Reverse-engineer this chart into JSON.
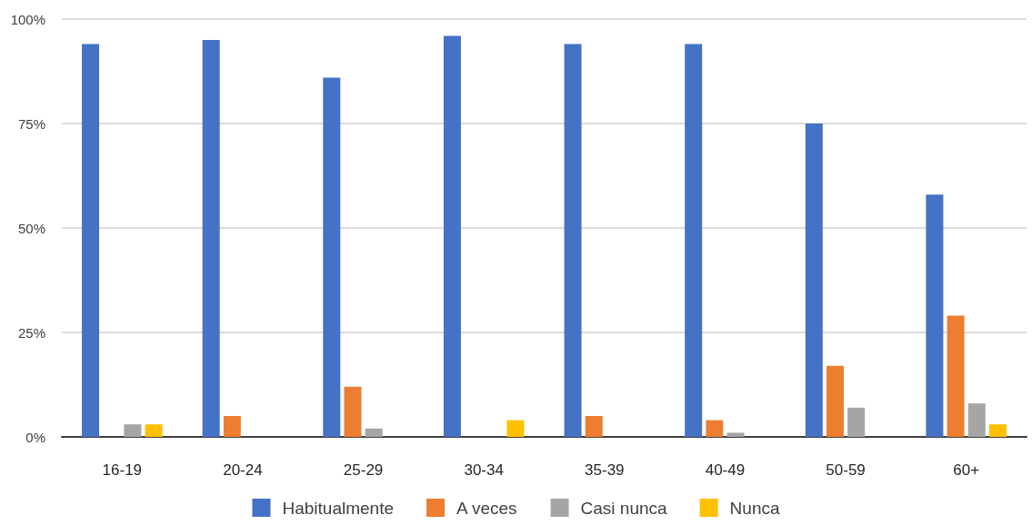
{
  "chart_data": {
    "type": "bar",
    "categories": [
      "16-19",
      "20-24",
      "25-29",
      "30-34",
      "35-39",
      "40-49",
      "50-59",
      "60+"
    ],
    "series": [
      {
        "name": "Habitualmente",
        "color": "#4472c4",
        "values": [
          94,
          95,
          86,
          96,
          94,
          94,
          75,
          58
        ]
      },
      {
        "name": "A veces",
        "color": "#ed7d31",
        "values": [
          0,
          5,
          12,
          0,
          5,
          4,
          17,
          29
        ]
      },
      {
        "name": "Casi nunca",
        "color": "#a5a5a5",
        "values": [
          3,
          0,
          2,
          0,
          0,
          1,
          7,
          8
        ]
      },
      {
        "name": "Nunca",
        "color": "#ffc000",
        "values": [
          3,
          0,
          0,
          4,
          0,
          0,
          0,
          3
        ]
      }
    ],
    "ylim": [
      0,
      100
    ],
    "yticks": [
      {
        "value": 0,
        "label": "0%"
      },
      {
        "value": 25,
        "label": "25%"
      },
      {
        "value": 50,
        "label": "50%"
      },
      {
        "value": 75,
        "label": "75%"
      },
      {
        "value": 100,
        "label": "100%"
      }
    ],
    "grid": "y",
    "legend": "bottom"
  }
}
